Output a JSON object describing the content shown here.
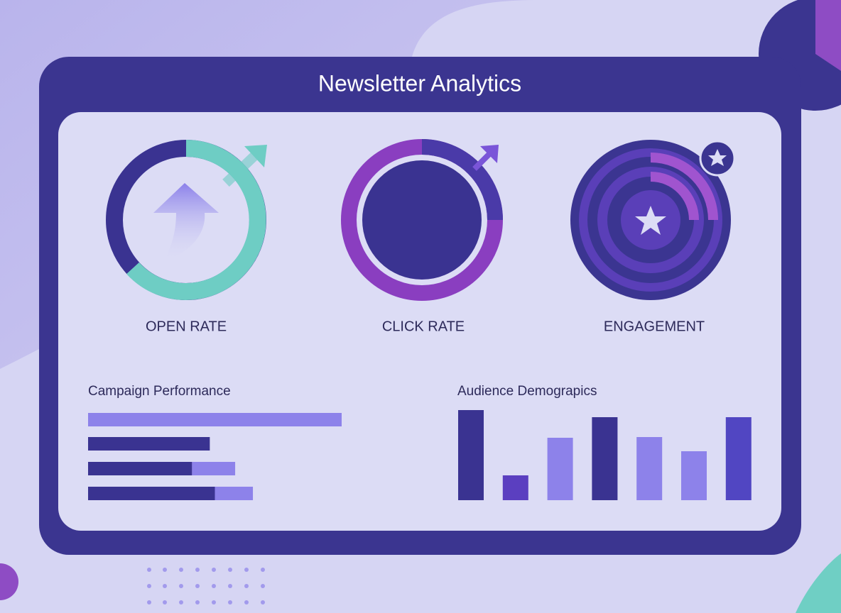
{
  "header": {
    "title": "Newsletter Analytics"
  },
  "metrics": [
    {
      "label": "OPEN RATE"
    },
    {
      "label": "CLICK RATE"
    },
    {
      "label": "ENGAGEMENT"
    }
  ],
  "campaign_performance": {
    "title": "Campaign Performance",
    "xlim": [
      0,
      100
    ],
    "series": [
      {
        "color": "#3a3391",
        "values": [
          0,
          48,
          41,
          50
        ]
      },
      {
        "color": "#8d82ea",
        "values": [
          100,
          0,
          17,
          15
        ]
      }
    ]
  },
  "audience_demographics": {
    "title": "Audience Demograpics",
    "ylim": [
      0,
      130
    ],
    "values": [
      127,
      35,
      88,
      117,
      89,
      69,
      117
    ],
    "colors": [
      "#3a3391",
      "#5b3fc0",
      "#8d82ea",
      "#3a3391",
      "#8d82ea",
      "#8d82ea",
      "#5146c2"
    ]
  }
}
